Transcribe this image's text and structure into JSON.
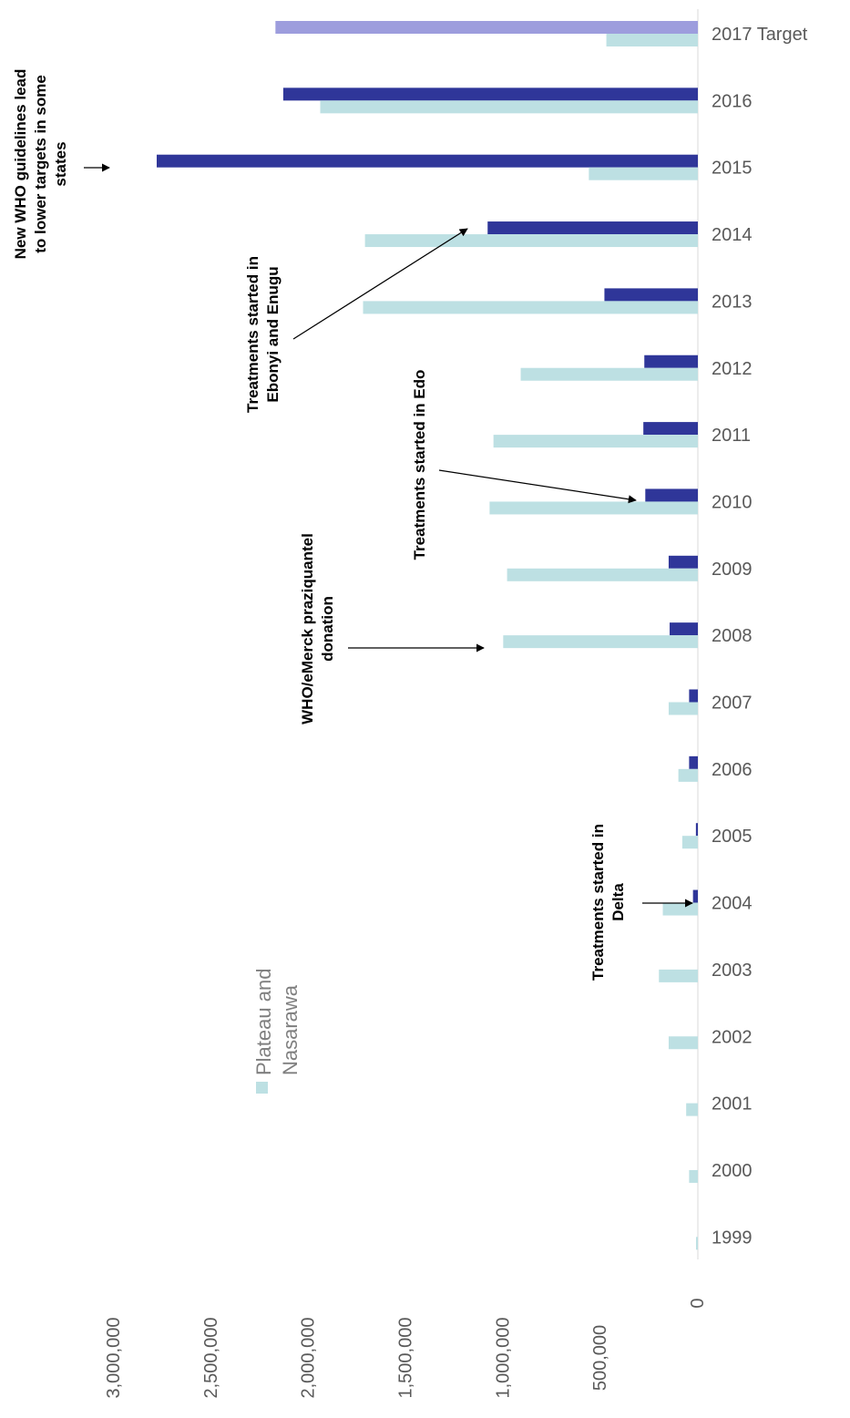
{
  "chart_data": {
    "type": "bar",
    "orientation": "horizontal",
    "categories": [
      "1999",
      "2000",
      "2001",
      "2002",
      "2003",
      "2004",
      "2005",
      "2006",
      "2007",
      "2008",
      "2009",
      "2010",
      "2011",
      "2012",
      "2013",
      "2014",
      "2015",
      "2016",
      "2017 Target"
    ],
    "series": [
      {
        "name": "Plateau and Nasarawa",
        "color": "#bde0e3",
        "values": [
          5000,
          45000,
          60000,
          150000,
          200000,
          180000,
          80000,
          100000,
          150000,
          1000000,
          980000,
          1070000,
          1050000,
          910000,
          1720000,
          1710000,
          560000,
          1940000,
          470000
        ]
      },
      {
        "name": "",
        "color": "#2f3699",
        "values": [
          0,
          0,
          0,
          0,
          0,
          25000,
          10000,
          45000,
          45000,
          145000,
          150000,
          270000,
          280000,
          275000,
          480000,
          1080000,
          2780000,
          2130000,
          2170000
        ],
        "target_color": "#9d9ddd"
      }
    ],
    "value_axis": {
      "ticks": [
        "0",
        "500,000",
        "1,000,000",
        "1,500,000",
        "2,000,000",
        "2,500,000",
        "3,000,000"
      ],
      "min": 0,
      "max": 3000000
    },
    "legend": {
      "position": "left",
      "label": "Plateau and Nasarawa"
    },
    "grid": false,
    "annotations": [
      {
        "id": "who-guidelines",
        "lines": [
          "New WHO guidelines lead",
          "to lower targets in some",
          "states"
        ],
        "category": "2015"
      },
      {
        "id": "ebonyi-enugu",
        "lines": [
          "Treatments started in",
          "Ebonyi and Enugu"
        ],
        "category": "2014"
      },
      {
        "id": "edo",
        "lines": [
          "Treatments started in Edo"
        ],
        "category": "2010"
      },
      {
        "id": "who-merck",
        "lines": [
          "WHO/eMerck praziquantel",
          "donation"
        ],
        "category": "2008"
      },
      {
        "id": "delta",
        "lines": [
          "Treatments started in",
          "Delta"
        ],
        "category": "2004"
      }
    ]
  }
}
